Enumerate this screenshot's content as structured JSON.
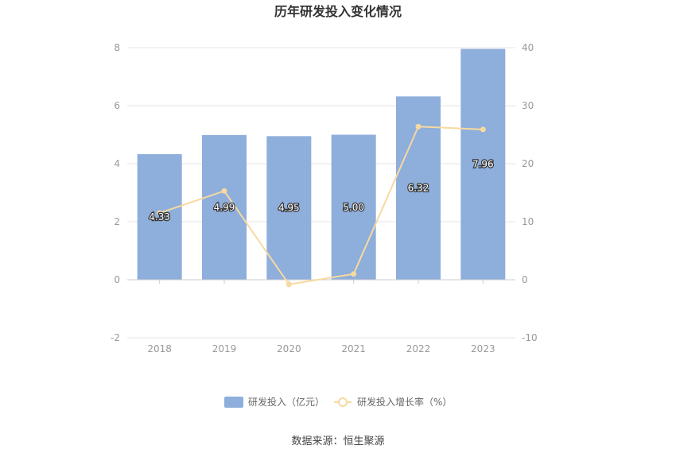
{
  "chart_data": {
    "type": "bar",
    "title": "历年研发投入变化情况",
    "categories": [
      "2018",
      "2019",
      "2020",
      "2021",
      "2022",
      "2023"
    ],
    "series": [
      {
        "name": "研发投入（亿元）",
        "type": "bar",
        "axis": "left",
        "color": "#8eaedb",
        "values": [
          4.33,
          4.99,
          4.95,
          5.0,
          6.32,
          7.96
        ],
        "labels": [
          "4.33",
          "4.99",
          "4.95",
          "5.00",
          "6.32",
          "7.96"
        ]
      },
      {
        "name": "研发投入增长率（%）",
        "type": "line",
        "axis": "right",
        "color": "#f7d9a0",
        "values": [
          11.5,
          15.3,
          -0.8,
          1.0,
          26.4,
          25.9
        ]
      }
    ],
    "y_left": {
      "ticks": [
        "-2",
        "0",
        "2",
        "4",
        "6",
        "8"
      ],
      "range": [
        -2,
        8
      ]
    },
    "y_right": {
      "ticks": [
        "-10",
        "0",
        "10",
        "20",
        "30",
        "40"
      ],
      "range": [
        -10,
        40
      ]
    },
    "grid": true,
    "legend": "bottom-center",
    "source": "数据来源：恒生聚源"
  }
}
